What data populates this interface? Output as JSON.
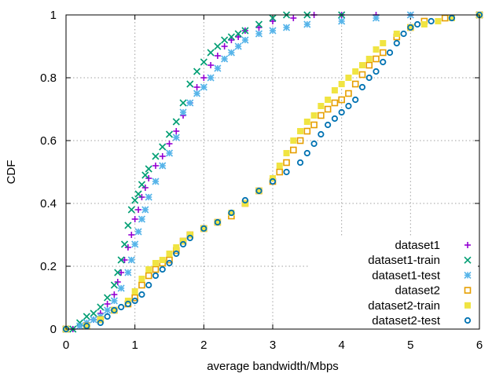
{
  "chart_data": {
    "type": "scatter",
    "xlabel": "average bandwidth/Mbps",
    "ylabel": "CDF",
    "xlim": [
      0,
      6
    ],
    "ylim": [
      0,
      1
    ],
    "xticks": [
      "0",
      "1",
      "2",
      "3",
      "4",
      "5",
      "6"
    ],
    "yticks": [
      "0",
      "0.2",
      "0.4",
      "0.6",
      "0.8",
      "1"
    ],
    "grid": true,
    "legend_position": "bottom-right",
    "series": [
      {
        "name": "dataset1",
        "marker": "plus",
        "color": "#9400d3",
        "points": [
          [
            0.0,
            0.0
          ],
          [
            0.1,
            0.0
          ],
          [
            0.2,
            0.01
          ],
          [
            0.3,
            0.02
          ],
          [
            0.4,
            0.03
          ],
          [
            0.5,
            0.05
          ],
          [
            0.6,
            0.08
          ],
          [
            0.7,
            0.11
          ],
          [
            0.75,
            0.15
          ],
          [
            0.8,
            0.18
          ],
          [
            0.85,
            0.22
          ],
          [
            0.9,
            0.26
          ],
          [
            0.95,
            0.3
          ],
          [
            1.0,
            0.35
          ],
          [
            1.05,
            0.38
          ],
          [
            1.1,
            0.42
          ],
          [
            1.15,
            0.45
          ],
          [
            1.2,
            0.48
          ],
          [
            1.3,
            0.52
          ],
          [
            1.4,
            0.55
          ],
          [
            1.5,
            0.59
          ],
          [
            1.6,
            0.63
          ],
          [
            1.7,
            0.68
          ],
          [
            1.8,
            0.72
          ],
          [
            1.9,
            0.77
          ],
          [
            2.0,
            0.8
          ],
          [
            2.1,
            0.84
          ],
          [
            2.2,
            0.87
          ],
          [
            2.3,
            0.9
          ],
          [
            2.4,
            0.92
          ],
          [
            2.5,
            0.93
          ],
          [
            2.6,
            0.95
          ],
          [
            2.8,
            0.96
          ],
          [
            3.0,
            0.98
          ],
          [
            3.3,
            0.99
          ],
          [
            3.6,
            1.0
          ],
          [
            4.0,
            1.0
          ],
          [
            4.5,
            1.0
          ],
          [
            5.0,
            1.0
          ],
          [
            6.0,
            1.0
          ]
        ]
      },
      {
        "name": "dataset1-train",
        "marker": "cross",
        "color": "#009e73",
        "points": [
          [
            0.0,
            0.0
          ],
          [
            0.1,
            0.0
          ],
          [
            0.2,
            0.02
          ],
          [
            0.3,
            0.04
          ],
          [
            0.4,
            0.05
          ],
          [
            0.5,
            0.07
          ],
          [
            0.6,
            0.1
          ],
          [
            0.7,
            0.14
          ],
          [
            0.75,
            0.18
          ],
          [
            0.8,
            0.22
          ],
          [
            0.85,
            0.27
          ],
          [
            0.9,
            0.33
          ],
          [
            0.95,
            0.38
          ],
          [
            1.0,
            0.41
          ],
          [
            1.05,
            0.43
          ],
          [
            1.1,
            0.46
          ],
          [
            1.15,
            0.49
          ],
          [
            1.2,
            0.51
          ],
          [
            1.3,
            0.55
          ],
          [
            1.4,
            0.58
          ],
          [
            1.5,
            0.62
          ],
          [
            1.6,
            0.66
          ],
          [
            1.7,
            0.72
          ],
          [
            1.8,
            0.78
          ],
          [
            1.9,
            0.82
          ],
          [
            2.0,
            0.85
          ],
          [
            2.1,
            0.88
          ],
          [
            2.2,
            0.9
          ],
          [
            2.3,
            0.92
          ],
          [
            2.4,
            0.93
          ],
          [
            2.5,
            0.94
          ],
          [
            2.6,
            0.95
          ],
          [
            2.8,
            0.97
          ],
          [
            3.0,
            0.99
          ],
          [
            3.2,
            1.0
          ],
          [
            3.5,
            1.0
          ],
          [
            4.0,
            1.0
          ],
          [
            6.0,
            1.0
          ]
        ]
      },
      {
        "name": "dataset1-test",
        "marker": "star",
        "color": "#56b4e9",
        "points": [
          [
            0.0,
            0.0
          ],
          [
            0.2,
            0.01
          ],
          [
            0.3,
            0.02
          ],
          [
            0.4,
            0.03
          ],
          [
            0.5,
            0.04
          ],
          [
            0.6,
            0.06
          ],
          [
            0.7,
            0.09
          ],
          [
            0.8,
            0.13
          ],
          [
            0.9,
            0.18
          ],
          [
            0.95,
            0.22
          ],
          [
            1.0,
            0.27
          ],
          [
            1.05,
            0.31
          ],
          [
            1.1,
            0.35
          ],
          [
            1.15,
            0.38
          ],
          [
            1.2,
            0.42
          ],
          [
            1.3,
            0.47
          ],
          [
            1.4,
            0.52
          ],
          [
            1.5,
            0.56
          ],
          [
            1.6,
            0.61
          ],
          [
            1.7,
            0.69
          ],
          [
            1.8,
            0.72
          ],
          [
            1.9,
            0.75
          ],
          [
            2.0,
            0.77
          ],
          [
            2.1,
            0.8
          ],
          [
            2.2,
            0.83
          ],
          [
            2.3,
            0.86
          ],
          [
            2.4,
            0.88
          ],
          [
            2.5,
            0.9
          ],
          [
            2.6,
            0.92
          ],
          [
            2.8,
            0.94
          ],
          [
            3.0,
            0.95
          ],
          [
            3.2,
            0.96
          ],
          [
            3.5,
            0.97
          ],
          [
            4.0,
            0.98
          ],
          [
            4.5,
            0.99
          ],
          [
            5.0,
            1.0
          ],
          [
            6.0,
            1.0
          ]
        ]
      },
      {
        "name": "dataset2",
        "marker": "square",
        "color": "#e69f00",
        "points": [
          [
            0.0,
            0.0
          ],
          [
            0.3,
            0.01
          ],
          [
            0.5,
            0.03
          ],
          [
            0.7,
            0.06
          ],
          [
            0.9,
            0.08
          ],
          [
            1.0,
            0.1
          ],
          [
            1.1,
            0.14
          ],
          [
            1.2,
            0.17
          ],
          [
            1.3,
            0.19
          ],
          [
            1.4,
            0.21
          ],
          [
            1.5,
            0.22
          ],
          [
            1.6,
            0.25
          ],
          [
            1.7,
            0.28
          ],
          [
            1.8,
            0.3
          ],
          [
            2.0,
            0.32
          ],
          [
            2.2,
            0.34
          ],
          [
            2.4,
            0.36
          ],
          [
            2.6,
            0.4
          ],
          [
            2.8,
            0.44
          ],
          [
            3.0,
            0.47
          ],
          [
            3.1,
            0.5
          ],
          [
            3.2,
            0.53
          ],
          [
            3.3,
            0.57
          ],
          [
            3.4,
            0.6
          ],
          [
            3.5,
            0.63
          ],
          [
            3.6,
            0.65
          ],
          [
            3.7,
            0.68
          ],
          [
            3.8,
            0.7
          ],
          [
            3.9,
            0.72
          ],
          [
            4.0,
            0.73
          ],
          [
            4.1,
            0.75
          ],
          [
            4.2,
            0.78
          ],
          [
            4.3,
            0.81
          ],
          [
            4.4,
            0.84
          ],
          [
            4.5,
            0.86
          ],
          [
            4.6,
            0.88
          ],
          [
            4.8,
            0.93
          ],
          [
            5.0,
            0.96
          ],
          [
            5.2,
            0.98
          ],
          [
            5.5,
            0.99
          ],
          [
            6.0,
            1.0
          ]
        ]
      },
      {
        "name": "dataset2-train",
        "marker": "filled-square",
        "color": "#f0e442",
        "points": [
          [
            0.0,
            0.0
          ],
          [
            0.3,
            0.01
          ],
          [
            0.5,
            0.03
          ],
          [
            0.7,
            0.06
          ],
          [
            0.9,
            0.09
          ],
          [
            1.0,
            0.12
          ],
          [
            1.1,
            0.16
          ],
          [
            1.2,
            0.19
          ],
          [
            1.3,
            0.21
          ],
          [
            1.4,
            0.22
          ],
          [
            1.5,
            0.24
          ],
          [
            1.6,
            0.26
          ],
          [
            1.7,
            0.28
          ],
          [
            1.8,
            0.3
          ],
          [
            2.0,
            0.32
          ],
          [
            2.2,
            0.34
          ],
          [
            2.4,
            0.37
          ],
          [
            2.6,
            0.4
          ],
          [
            2.8,
            0.44
          ],
          [
            3.0,
            0.48
          ],
          [
            3.1,
            0.52
          ],
          [
            3.2,
            0.56
          ],
          [
            3.3,
            0.6
          ],
          [
            3.4,
            0.63
          ],
          [
            3.5,
            0.66
          ],
          [
            3.6,
            0.68
          ],
          [
            3.7,
            0.71
          ],
          [
            3.8,
            0.73
          ],
          [
            3.9,
            0.76
          ],
          [
            4.0,
            0.78
          ],
          [
            4.1,
            0.8
          ],
          [
            4.2,
            0.82
          ],
          [
            4.3,
            0.84
          ],
          [
            4.4,
            0.86
          ],
          [
            4.5,
            0.89
          ],
          [
            4.6,
            0.91
          ],
          [
            4.8,
            0.94
          ],
          [
            5.0,
            0.96
          ],
          [
            5.2,
            0.97
          ],
          [
            5.4,
            0.98
          ],
          [
            5.6,
            0.99
          ],
          [
            6.0,
            1.0
          ]
        ]
      },
      {
        "name": "dataset2-test",
        "marker": "circle",
        "color": "#0072b2",
        "points": [
          [
            0.0,
            0.0
          ],
          [
            0.3,
            0.01
          ],
          [
            0.5,
            0.02
          ],
          [
            0.6,
            0.04
          ],
          [
            0.7,
            0.06
          ],
          [
            0.8,
            0.07
          ],
          [
            0.9,
            0.08
          ],
          [
            1.0,
            0.09
          ],
          [
            1.1,
            0.11
          ],
          [
            1.2,
            0.14
          ],
          [
            1.3,
            0.17
          ],
          [
            1.4,
            0.19
          ],
          [
            1.5,
            0.21
          ],
          [
            1.6,
            0.24
          ],
          [
            1.7,
            0.27
          ],
          [
            1.8,
            0.29
          ],
          [
            2.0,
            0.32
          ],
          [
            2.2,
            0.34
          ],
          [
            2.4,
            0.37
          ],
          [
            2.6,
            0.41
          ],
          [
            2.8,
            0.44
          ],
          [
            3.0,
            0.47
          ],
          [
            3.2,
            0.5
          ],
          [
            3.4,
            0.53
          ],
          [
            3.5,
            0.56
          ],
          [
            3.6,
            0.59
          ],
          [
            3.7,
            0.62
          ],
          [
            3.8,
            0.65
          ],
          [
            3.9,
            0.67
          ],
          [
            4.0,
            0.69
          ],
          [
            4.1,
            0.71
          ],
          [
            4.2,
            0.73
          ],
          [
            4.3,
            0.77
          ],
          [
            4.4,
            0.8
          ],
          [
            4.5,
            0.82
          ],
          [
            4.6,
            0.85
          ],
          [
            4.7,
            0.88
          ],
          [
            4.8,
            0.91
          ],
          [
            4.9,
            0.94
          ],
          [
            5.0,
            0.96
          ],
          [
            5.1,
            0.97
          ],
          [
            5.3,
            0.98
          ],
          [
            5.6,
            0.99
          ],
          [
            6.0,
            1.0
          ]
        ]
      }
    ]
  }
}
